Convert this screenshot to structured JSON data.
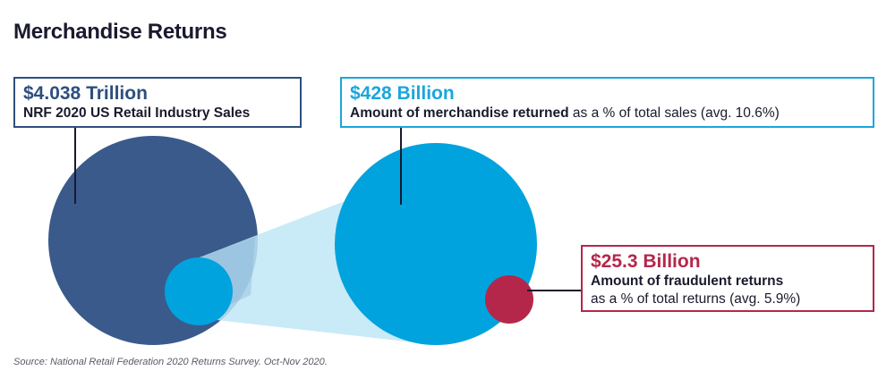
{
  "title": "Merchandise Returns",
  "total_sales": {
    "amount": "$4.038 Trillion",
    "description": "NRF 2020 US Retail Industry Sales"
  },
  "returned": {
    "amount": "$428 Billion",
    "description_bold": "Amount of merchandise returned",
    "description_rest": " as a % of total sales (avg. 10.6%)"
  },
  "fraudulent": {
    "amount": "$25.3 Billion",
    "description_bold": "Amount of fraudulent returns",
    "description_rest": "as a % of total returns (avg. 5.9%)"
  },
  "source": "Source: National Retail Federation 2020 Returns Survey. Oct-Nov 2020.",
  "colors": {
    "total": "#3a5a8c",
    "returned": "#00a3dd",
    "fraud": "#b4274b",
    "funnel": "#bfe6f6"
  }
}
